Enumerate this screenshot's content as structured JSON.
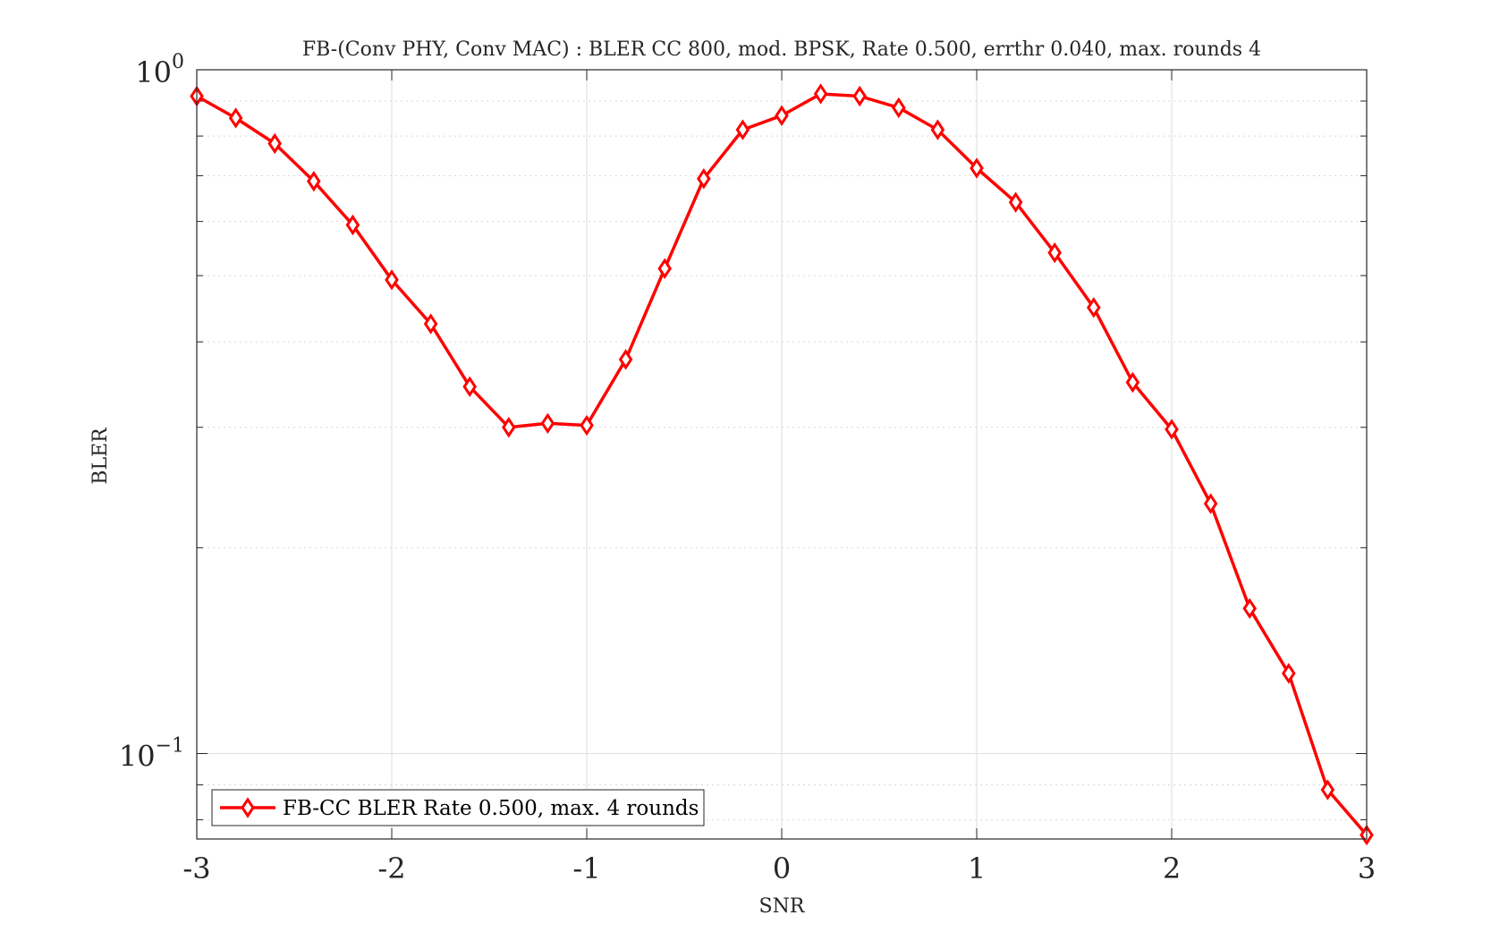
{
  "chart_data": {
    "type": "line",
    "title": "FB-(Conv PHY, Conv MAC) : BLER CC 800, mod. BPSK, Rate 0.500, errthr 0.040, max. rounds 4",
    "xlabel": "SNR",
    "ylabel": "BLER",
    "xlim": [
      -3,
      3
    ],
    "ylim": [
      0.075,
      1.0
    ],
    "yscale": "log",
    "grid": true,
    "legend_location": "bottom-left",
    "x_ticks": [
      {
        "value": -3,
        "label": "-3"
      },
      {
        "value": -2,
        "label": "-2"
      },
      {
        "value": -1,
        "label": "-1"
      },
      {
        "value": 0,
        "label": "0"
      },
      {
        "value": 1,
        "label": "1"
      },
      {
        "value": 2,
        "label": "2"
      },
      {
        "value": 3,
        "label": "3"
      }
    ],
    "y_ticks": [
      {
        "value": 1.0,
        "base": "10",
        "exponent": "0"
      },
      {
        "value": 0.1,
        "base": "10",
        "exponent": "−1"
      }
    ],
    "series": [
      {
        "name": "FB-CC BLER Rate 0.500, max. 4 rounds",
        "color": "#ff0000",
        "marker": "diamond",
        "x": [
          -3.0,
          -2.8,
          -2.6,
          -2.4,
          -2.2,
          -2.0,
          -1.8,
          -1.6,
          -1.4,
          -1.2,
          -1.0,
          -0.8,
          -0.6,
          -0.4,
          -0.2,
          0.0,
          0.2,
          0.4,
          0.6,
          0.8,
          1.0,
          1.2,
          1.4,
          1.6,
          1.8,
          2.0,
          2.2,
          2.4,
          2.6,
          2.8,
          3.0
        ],
        "y": [
          0.915,
          0.85,
          0.78,
          0.687,
          0.593,
          0.493,
          0.425,
          0.344,
          0.3,
          0.304,
          0.302,
          0.377,
          0.512,
          0.693,
          0.817,
          0.857,
          0.922,
          0.915,
          0.88,
          0.817,
          0.718,
          0.64,
          0.54,
          0.449,
          0.349,
          0.298,
          0.232,
          0.163,
          0.131,
          0.0885,
          0.076
        ]
      }
    ]
  }
}
